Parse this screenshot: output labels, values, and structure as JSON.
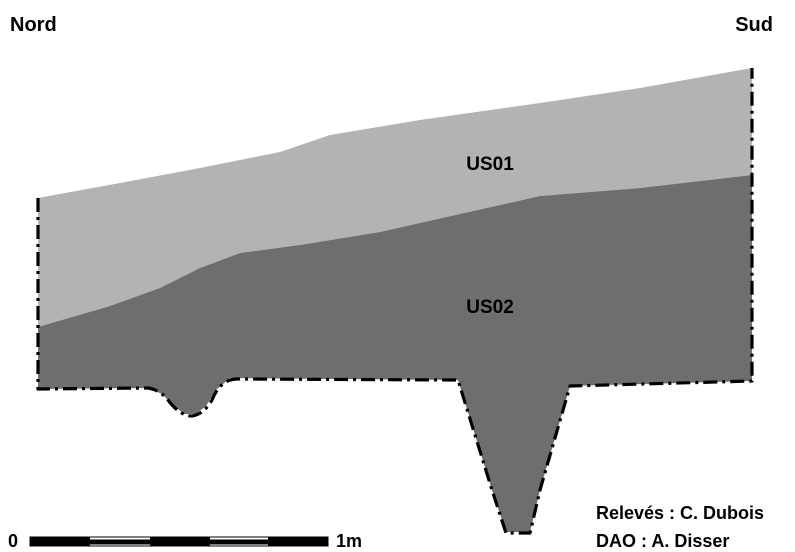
{
  "orientation": {
    "left": "Nord",
    "right": "Sud"
  },
  "layers": [
    {
      "label": "US01",
      "color": "#b3b3b3"
    },
    {
      "label": "US02",
      "color": "#6e6e6e"
    }
  ],
  "scale": {
    "start_label": "0",
    "end_label": "1m"
  },
  "credits": {
    "releves": "Relevés : C. Dubois",
    "dao": "DAO : A. Disser"
  }
}
